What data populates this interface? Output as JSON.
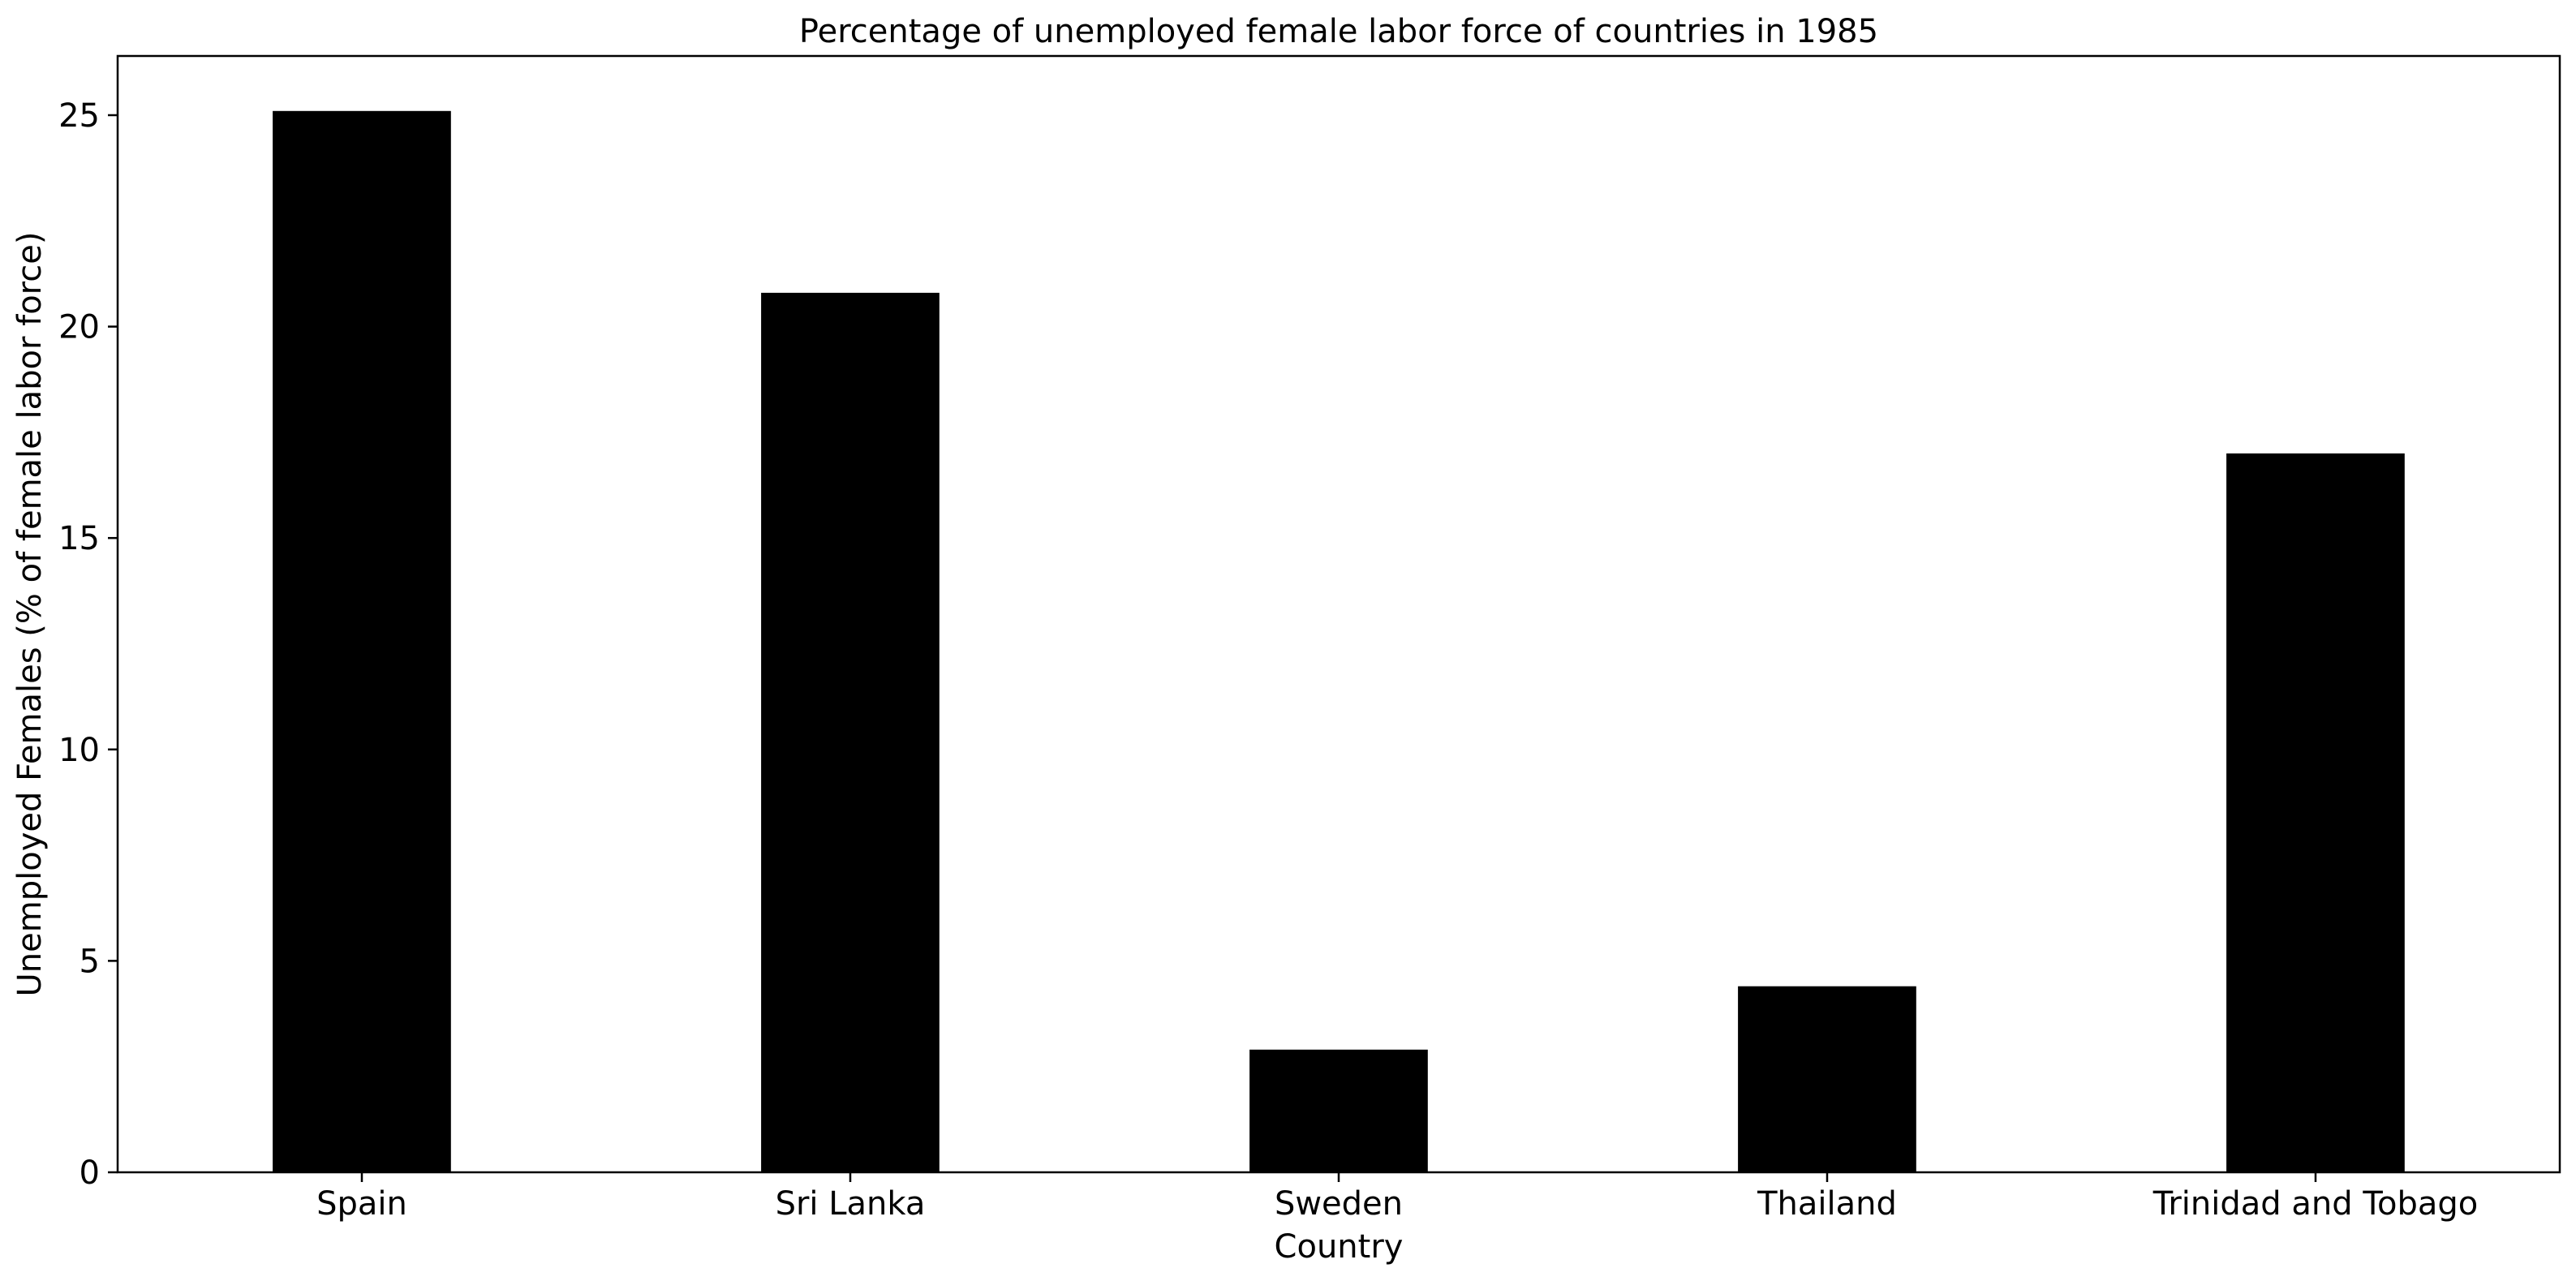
{
  "chart_data": {
    "type": "bar",
    "title": "Percentage of unemployed female labor force of countries in 1985",
    "xlabel": "Country",
    "ylabel": "Unemployed Females (% of female labor force)",
    "categories": [
      "Spain",
      "Sri Lanka",
      "Sweden",
      "Thailand",
      "Trinidad and Tobago"
    ],
    "values": [
      25.1,
      20.8,
      2.9,
      4.4,
      17.0
    ],
    "ylim": [
      0,
      26.4
    ],
    "yticks": [
      0,
      5,
      10,
      15,
      20,
      25
    ],
    "ytick_labels": [
      "0",
      "5",
      "10",
      "15",
      "20",
      "25"
    ],
    "grid": false,
    "bar_color": "#000000"
  }
}
